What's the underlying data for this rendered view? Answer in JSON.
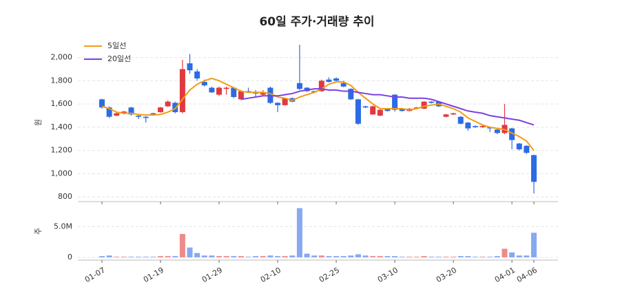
{
  "chart_data": [
    {
      "type": "candlestick",
      "title": "60일 주가·거래량 추이",
      "y_label": "원",
      "up_color": "#e0393e",
      "down_color": "#2d6be4",
      "open": [
        1640,
        1570,
        1500,
        1525,
        1570,
        1500,
        1490,
        1520,
        1530,
        1580,
        1610,
        1530,
        1950,
        1880,
        1790,
        1740,
        1680,
        1730,
        1740,
        1640,
        1710,
        1700,
        1680,
        1740,
        1610,
        1590,
        1650,
        1780,
        1740,
        1710,
        1710,
        1810,
        1820,
        1780,
        1730,
        1640,
        1580,
        1510,
        1500,
        1560,
        1680,
        1560,
        1540,
        1560,
        1560,
        1620,
        1620,
        1490,
        1510,
        1490,
        1440,
        1410,
        1400,
        1400,
        1380,
        1350,
        1390,
        1260,
        1240,
        1160
      ],
      "high": [
        1645,
        1580,
        1530,
        1540,
        1575,
        1505,
        1495,
        1525,
        1575,
        1630,
        1620,
        1980,
        2030,
        1900,
        1810,
        1750,
        1750,
        1750,
        1745,
        1720,
        1740,
        1720,
        1720,
        1750,
        1615,
        1655,
        1655,
        2110,
        1745,
        1715,
        1810,
        1830,
        1830,
        1800,
        1735,
        1645,
        1585,
        1585,
        1555,
        1565,
        1685,
        1565,
        1565,
        1575,
        1625,
        1625,
        1625,
        1515,
        1525,
        1495,
        1445,
        1415,
        1415,
        1405,
        1385,
        1600,
        1395,
        1265,
        1245,
        1165
      ],
      "low": [
        1560,
        1480,
        1495,
        1510,
        1500,
        1470,
        1440,
        1500,
        1525,
        1575,
        1520,
        1520,
        1860,
        1800,
        1750,
        1695,
        1670,
        1680,
        1650,
        1635,
        1695,
        1660,
        1675,
        1600,
        1530,
        1585,
        1615,
        1720,
        1705,
        1695,
        1705,
        1785,
        1795,
        1745,
        1635,
        1420,
        1565,
        1505,
        1495,
        1535,
        1535,
        1535,
        1535,
        1555,
        1555,
        1605,
        1575,
        1485,
        1505,
        1425,
        1370,
        1395,
        1395,
        1360,
        1340,
        1340,
        1210,
        1200,
        1170,
        830
      ],
      "close": [
        1570,
        1490,
        1520,
        1535,
        1510,
        1490,
        1480,
        1510,
        1570,
        1620,
        1530,
        1900,
        1890,
        1820,
        1760,
        1700,
        1740,
        1740,
        1660,
        1710,
        1700,
        1690,
        1700,
        1610,
        1590,
        1650,
        1620,
        1730,
        1710,
        1700,
        1800,
        1790,
        1800,
        1750,
        1640,
        1430,
        1570,
        1580,
        1550,
        1540,
        1550,
        1540,
        1560,
        1570,
        1620,
        1610,
        1580,
        1510,
        1520,
        1430,
        1390,
        1400,
        1410,
        1390,
        1350,
        1420,
        1290,
        1210,
        1180,
        930
      ],
      "series": [
        {
          "name": "5일선",
          "color": "#f39c12",
          "values": [
            1580,
            1560,
            1530,
            1520,
            1520,
            1510,
            1505,
            1505,
            1510,
            1530,
            1560,
            1640,
            1720,
            1770,
            1800,
            1820,
            1800,
            1770,
            1740,
            1710,
            1700,
            1700,
            1700,
            1690,
            1660,
            1650,
            1630,
            1660,
            1680,
            1700,
            1730,
            1770,
            1790,
            1790,
            1760,
            1700,
            1650,
            1600,
            1560,
            1560,
            1560,
            1560,
            1550,
            1560,
            1580,
            1590,
            1600,
            1580,
            1560,
            1530,
            1480,
            1450,
            1420,
            1400,
            1390,
            1380,
            1350,
            1320,
            1280,
            1200
          ]
        },
        {
          "name": "20일선",
          "color": "#7b3fe4",
          "values": [
            null,
            null,
            null,
            null,
            null,
            null,
            null,
            null,
            null,
            null,
            null,
            null,
            null,
            null,
            null,
            null,
            null,
            null,
            null,
            1640,
            1650,
            1660,
            1670,
            1670,
            1670,
            1680,
            1690,
            1710,
            1720,
            1730,
            1730,
            1720,
            1720,
            1710,
            1710,
            1700,
            1690,
            1680,
            1680,
            1670,
            1660,
            1660,
            1650,
            1650,
            1650,
            1640,
            1620,
            1600,
            1580,
            1560,
            1540,
            1530,
            1520,
            1500,
            1490,
            1480,
            1470,
            1460,
            1440,
            1420
          ]
        }
      ],
      "ylim": [
        760,
        2110
      ],
      "yticks": [
        800,
        {
          "value": 1000,
          "label": "1,000"
        },
        {
          "value": 1200,
          "label": "1,200"
        },
        {
          "value": 1400,
          "label": "1,400"
        },
        {
          "value": 1600,
          "label": "1,600"
        },
        {
          "value": 1800,
          "label": "1,800"
        },
        {
          "value": 2000,
          "label": "2,000"
        }
      ],
      "grid": true,
      "legend": "upper-left"
    },
    {
      "type": "bar",
      "y_label": "주",
      "up_color": "#ee8a8a",
      "down_color": "#86a9f2",
      "categories": [
        "01-07",
        null,
        null,
        null,
        null,
        null,
        null,
        null,
        "01-19",
        null,
        null,
        null,
        null,
        null,
        null,
        null,
        "01-29",
        null,
        null,
        null,
        null,
        null,
        null,
        null,
        "02-10",
        null,
        null,
        null,
        null,
        null,
        null,
        null,
        "02-25",
        null,
        null,
        null,
        null,
        null,
        null,
        null,
        "03-10",
        null,
        null,
        null,
        null,
        null,
        null,
        null,
        "03-20",
        null,
        null,
        null,
        null,
        null,
        null,
        null,
        "04-01",
        null,
        null,
        "04-06"
      ],
      "values": [
        200000,
        300000,
        100000,
        100000,
        100000,
        100000,
        100000,
        100000,
        200000,
        200000,
        200000,
        3800000,
        1600000,
        700000,
        300000,
        300000,
        200000,
        200000,
        200000,
        200000,
        100000,
        200000,
        200000,
        300000,
        200000,
        200000,
        300000,
        8000000,
        600000,
        300000,
        300000,
        200000,
        200000,
        200000,
        300000,
        500000,
        300000,
        200000,
        200000,
        200000,
        200000,
        100000,
        100000,
        100000,
        200000,
        100000,
        100000,
        100000,
        100000,
        200000,
        200000,
        100000,
        100000,
        100000,
        200000,
        1400000,
        800000,
        300000,
        300000,
        4000000
      ],
      "ylim": [
        0,
        8500000
      ],
      "yticks": [
        0,
        {
          "value": 5000000,
          "label": "5.0M"
        }
      ],
      "grid": true
    }
  ]
}
